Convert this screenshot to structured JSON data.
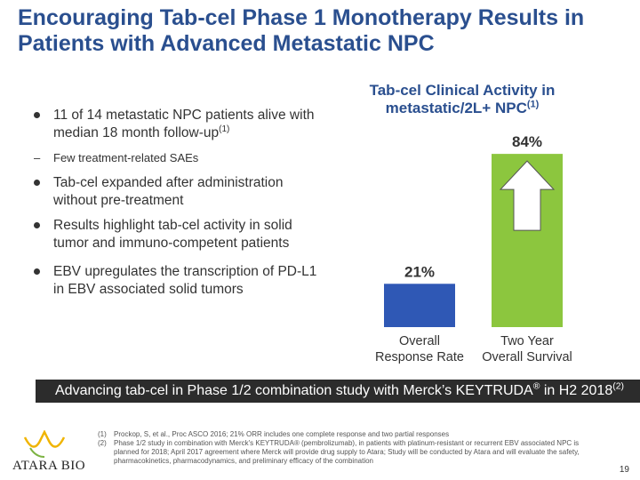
{
  "title": "Encouraging Tab-cel Phase 1 Monotherapy Results in Patients with Advanced Metastatic NPC",
  "bullets": [
    {
      "text": "11 of 14 metastatic NPC patients alive with median 18 month follow-up",
      "sup": "(1)",
      "sub": "Few treatment-related SAEs"
    },
    {
      "text": "Tab-cel expanded after administration without pre-treatment"
    },
    {
      "text": "Results highlight tab-cel activity in solid tumor and immuno-competent patients"
    },
    {
      "text": "EBV upregulates the transcription of PD-L1 in EBV associated solid tumors"
    }
  ],
  "chart_data": {
    "type": "bar",
    "title": "Tab-cel Clinical Activity in metastatic/2L+ NPC",
    "title_sup": "(1)",
    "categories": [
      "Overall Response Rate",
      "Two Year Overall Survival"
    ],
    "category_lines": [
      [
        "Overall",
        "Response Rate"
      ],
      [
        "Two Year",
        "Overall Survival"
      ]
    ],
    "values": [
      21,
      84
    ],
    "labels": [
      "21%",
      "84%"
    ],
    "colors": [
      "#2f58b5",
      "#8cc63e"
    ],
    "ylim": [
      0,
      100
    ],
    "annotation": "up-arrow"
  },
  "banner": {
    "text": "Advancing tab-cel in Phase 1/2 combination study with Merck’s KEYTRUDA",
    "reg": "®",
    "rest": " in H2 2018",
    "sup": "(2)"
  },
  "footnotes": [
    {
      "n": "(1)",
      "text": "Prockop, S, et al., Proc ASCO 2016; 21% ORR includes one complete response and two partial responses"
    },
    {
      "n": "(2)",
      "text": "Phase 1/2 study in combination with Merck's KEYTRUDA® (pembrolizumab), in patients with platinum-resistant or recurrent EBV associated NPC is planned for 2018; April 2017 agreement where Merck will provide drug supply to Atara; Study will be conducted by Atara and will evaluate the safety, pharmacokinetics, pharmacodynamics, and preliminary efficacy of the combination"
    }
  ],
  "logo": {
    "text": "ATARA BIO"
  },
  "page_number": "19"
}
